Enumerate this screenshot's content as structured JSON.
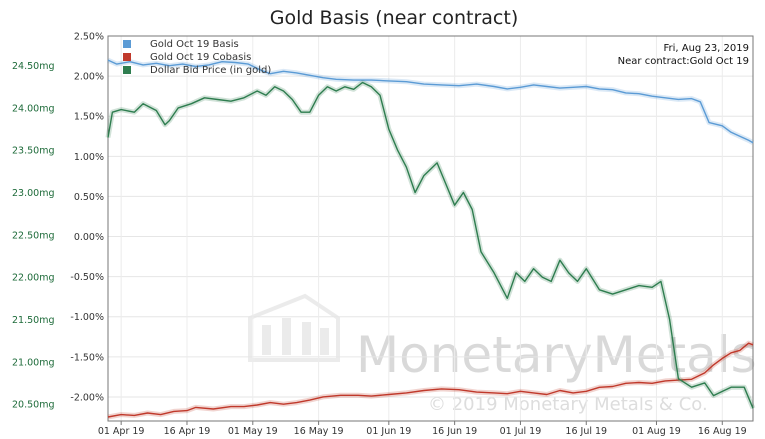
{
  "chart_data": {
    "type": "line",
    "title": "Gold Basis (near contract)",
    "xlabel": "",
    "ylabel_left": "",
    "ylabel_right": "",
    "x_tick_labels": [
      "01 Apr 19",
      "16 Apr 19",
      "01 May 19",
      "16 May 19",
      "01 Jun 19",
      "16 Jun 19",
      "01 Jul 19",
      "16 Jul 19",
      "01 Aug 19",
      "16 Aug 19"
    ],
    "x_ticks_day_index": [
      3,
      18,
      33,
      48,
      64,
      79,
      94,
      109,
      125,
      140
    ],
    "x_range_day_index": [
      0,
      147
    ],
    "right_axis": {
      "ticks": [
        "2.50%",
        "2.00%",
        "1.50%",
        "1.00%",
        "0.50%",
        "0.00%",
        "-0.50%",
        "-1.00%",
        "-1.50%",
        "-2.00%"
      ],
      "tick_values": [
        2.5,
        2.0,
        1.5,
        1.0,
        0.5,
        0.0,
        -0.5,
        -1.0,
        -1.5,
        -2.0
      ],
      "range": [
        -2.3,
        2.5
      ]
    },
    "left_axis": {
      "ticks": [
        "24.50mg",
        "24.00mg",
        "23.50mg",
        "23.00mg",
        "22.50mg",
        "22.00mg",
        "21.50mg",
        "21.00mg",
        "20.50mg"
      ],
      "tick_values": [
        24.5,
        24.0,
        23.5,
        23.0,
        22.5,
        22.0,
        21.5,
        21.0,
        20.5
      ],
      "range": [
        20.3,
        24.85
      ]
    },
    "grid": true,
    "legend_position": "top-left",
    "series": [
      {
        "name": "Gold Oct 19 Basis",
        "color": "#5b9bd5",
        "axis": "right",
        "points": [
          [
            0,
            2.2
          ],
          [
            2,
            2.15
          ],
          [
            5,
            2.18
          ],
          [
            8,
            2.14
          ],
          [
            11,
            2.16
          ],
          [
            14,
            2.13
          ],
          [
            17,
            2.15
          ],
          [
            20,
            2.12
          ],
          [
            23,
            2.14
          ],
          [
            26,
            2.18
          ],
          [
            29,
            2.17
          ],
          [
            32,
            2.15
          ],
          [
            35,
            2.07
          ],
          [
            37,
            2.03
          ],
          [
            40,
            2.06
          ],
          [
            43,
            2.04
          ],
          [
            46,
            2.01
          ],
          [
            49,
            1.98
          ],
          [
            52,
            1.96
          ],
          [
            56,
            1.95
          ],
          [
            60,
            1.95
          ],
          [
            64,
            1.94
          ],
          [
            68,
            1.93
          ],
          [
            72,
            1.9
          ],
          [
            76,
            1.89
          ],
          [
            80,
            1.88
          ],
          [
            84,
            1.9
          ],
          [
            88,
            1.87
          ],
          [
            91,
            1.84
          ],
          [
            94,
            1.86
          ],
          [
            97,
            1.89
          ],
          [
            100,
            1.87
          ],
          [
            103,
            1.85
          ],
          [
            106,
            1.86
          ],
          [
            109,
            1.87
          ],
          [
            112,
            1.84
          ],
          [
            115,
            1.83
          ],
          [
            118,
            1.79
          ],
          [
            121,
            1.78
          ],
          [
            124,
            1.75
          ],
          [
            127,
            1.73
          ],
          [
            130,
            1.71
          ],
          [
            133,
            1.72
          ],
          [
            135,
            1.68
          ],
          [
            137,
            1.42
          ],
          [
            140,
            1.38
          ],
          [
            142,
            1.3
          ],
          [
            144,
            1.25
          ],
          [
            146,
            1.2
          ],
          [
            147,
            1.17
          ]
        ]
      },
      {
        "name": "Gold Oct 19 Cobasis",
        "color": "#c0392b",
        "axis": "right",
        "points": [
          [
            0,
            -2.25
          ],
          [
            3,
            -2.22
          ],
          [
            6,
            -2.23
          ],
          [
            9,
            -2.2
          ],
          [
            12,
            -2.22
          ],
          [
            15,
            -2.18
          ],
          [
            18,
            -2.17
          ],
          [
            20,
            -2.13
          ],
          [
            24,
            -2.15
          ],
          [
            28,
            -2.12
          ],
          [
            31,
            -2.12
          ],
          [
            34,
            -2.1
          ],
          [
            37,
            -2.07
          ],
          [
            40,
            -2.09
          ],
          [
            43,
            -2.07
          ],
          [
            46,
            -2.04
          ],
          [
            49,
            -2.0
          ],
          [
            53,
            -1.98
          ],
          [
            57,
            -1.98
          ],
          [
            60,
            -1.99
          ],
          [
            64,
            -1.97
          ],
          [
            68,
            -1.95
          ],
          [
            72,
            -1.92
          ],
          [
            76,
            -1.9
          ],
          [
            80,
            -1.91
          ],
          [
            84,
            -1.94
          ],
          [
            88,
            -1.95
          ],
          [
            91,
            -1.96
          ],
          [
            94,
            -1.93
          ],
          [
            97,
            -1.95
          ],
          [
            100,
            -1.97
          ],
          [
            103,
            -1.92
          ],
          [
            106,
            -1.95
          ],
          [
            109,
            -1.93
          ],
          [
            112,
            -1.88
          ],
          [
            115,
            -1.87
          ],
          [
            118,
            -1.83
          ],
          [
            121,
            -1.82
          ],
          [
            124,
            -1.83
          ],
          [
            127,
            -1.8
          ],
          [
            130,
            -1.79
          ],
          [
            133,
            -1.78
          ],
          [
            136,
            -1.7
          ],
          [
            138,
            -1.6
          ],
          [
            140,
            -1.52
          ],
          [
            142,
            -1.45
          ],
          [
            144,
            -1.42
          ],
          [
            146,
            -1.33
          ],
          [
            147,
            -1.35
          ]
        ]
      },
      {
        "name": "Dollar Bid Price (in gold)",
        "color": "#2e7d4f",
        "axis": "left",
        "points": [
          [
            0,
            23.65
          ],
          [
            1,
            23.95
          ],
          [
            3,
            23.98
          ],
          [
            6,
            23.95
          ],
          [
            8,
            24.05
          ],
          [
            11,
            23.97
          ],
          [
            13,
            23.8
          ],
          [
            14,
            23.85
          ],
          [
            16,
            24.0
          ],
          [
            19,
            24.05
          ],
          [
            22,
            24.12
          ],
          [
            25,
            24.1
          ],
          [
            28,
            24.08
          ],
          [
            31,
            24.12
          ],
          [
            34,
            24.2
          ],
          [
            36,
            24.15
          ],
          [
            38,
            24.25
          ],
          [
            40,
            24.2
          ],
          [
            42,
            24.1
          ],
          [
            44,
            23.95
          ],
          [
            46,
            23.95
          ],
          [
            48,
            24.15
          ],
          [
            50,
            24.25
          ],
          [
            52,
            24.2
          ],
          [
            54,
            24.25
          ],
          [
            56,
            24.22
          ],
          [
            58,
            24.3
          ],
          [
            60,
            24.25
          ],
          [
            62,
            24.15
          ],
          [
            64,
            23.75
          ],
          [
            66,
            23.5
          ],
          [
            68,
            23.3
          ],
          [
            70,
            23.0
          ],
          [
            72,
            23.2
          ],
          [
            75,
            23.35
          ],
          [
            77,
            23.1
          ],
          [
            79,
            22.85
          ],
          [
            81,
            23.0
          ],
          [
            83,
            22.8
          ],
          [
            85,
            22.3
          ],
          [
            88,
            22.05
          ],
          [
            91,
            21.75
          ],
          [
            93,
            22.05
          ],
          [
            95,
            21.95
          ],
          [
            97,
            22.1
          ],
          [
            99,
            22.0
          ],
          [
            101,
            21.95
          ],
          [
            103,
            22.2
          ],
          [
            105,
            22.05
          ],
          [
            107,
            21.95
          ],
          [
            109,
            22.1
          ],
          [
            112,
            21.85
          ],
          [
            115,
            21.8
          ],
          [
            118,
            21.85
          ],
          [
            121,
            21.9
          ],
          [
            124,
            21.88
          ],
          [
            126,
            21.95
          ],
          [
            128,
            21.5
          ],
          [
            130,
            20.8
          ],
          [
            133,
            20.7
          ],
          [
            136,
            20.75
          ],
          [
            138,
            20.6
          ],
          [
            140,
            20.65
          ],
          [
            142,
            20.7
          ],
          [
            145,
            20.7
          ],
          [
            147,
            20.45
          ]
        ]
      }
    ]
  },
  "annotation": {
    "date_line": "Fri, Aug 23, 2019",
    "contract_line": "Near contract:Gold Oct 19"
  },
  "watermark": {
    "brand": "MonetaryMetals",
    "copyright": "© 2019 Monetary Metals & Co."
  }
}
